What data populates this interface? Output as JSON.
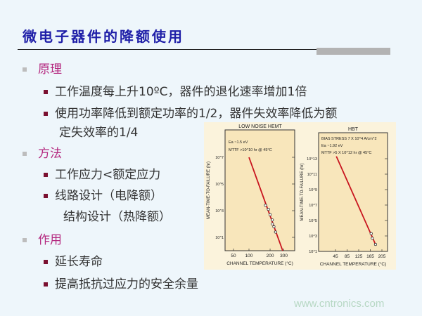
{
  "title": "微电子器件的降额使用",
  "sections": [
    {
      "heading": "原理",
      "items": [
        "工作温度每上升10ºC，器件的退化速率增加1倍",
        "使用功率降低到额定功率的1/2，器件失效率降低为额",
        "定失效率的1/4"
      ]
    },
    {
      "heading": "方法",
      "items": [
        "工作应力<额定应力",
        "线路设计（电降额）",
        "结构设计（热降额）"
      ]
    },
    {
      "heading": "作用",
      "items": [
        "延长寿命",
        "提高抵抗过应力的安全余量"
      ]
    }
  ],
  "watermark": "www.cntronics.com",
  "chart_data": [
    {
      "type": "line",
      "title": "LOW NOISE HEMT",
      "annotations": [
        "Ea ~1.5 eV",
        "MTTF >10^10 hr @ 45°C"
      ],
      "xlabel": "CHANNEL TEMPERATURE (°C)",
      "ylabel": "MEAN-TIME-TO-FAILURE (hr)",
      "x_scale": "reciprocal",
      "y_scale": "log",
      "x_ticks": [
        "50",
        "100",
        "200",
        "300"
      ],
      "x_tick_values": [
        50,
        100,
        200,
        300
      ],
      "y_ticks": [
        "10^7",
        "10^5",
        "10^3",
        "10^1"
      ],
      "y_tick_values": [
        10000000.0,
        100000.0,
        1000.0,
        10.0
      ],
      "line": [
        {
          "x": 100,
          "y": 10000000.0
        },
        {
          "x": 290,
          "y": 1
        }
      ],
      "points": [
        {
          "x": 174,
          "y": 2500
        },
        {
          "x": 190,
          "y": 1260
        },
        {
          "x": 200,
          "y": 500
        },
        {
          "x": 214,
          "y": 200
        },
        {
          "x": 214,
          "y": 100
        },
        {
          "x": 224,
          "y": 63
        },
        {
          "x": 235,
          "y": 25
        }
      ],
      "line_color": "#c8141e"
    },
    {
      "type": "line",
      "title": "HBT",
      "annotations": [
        "BIAS STRESS 7 X 10^4 A/cm^2",
        "Ea ~1.92 eV",
        "MTTF >5 X 10^12 hr @ 45°C"
      ],
      "xlabel": "CHANNEL TEMPERATURE (°C)",
      "ylabel": "MEAN-TIME-TO-FAILURE (hr)",
      "y_scale": "log",
      "x_ticks": [
        "45",
        "85",
        "125",
        "165",
        "205"
      ],
      "x_tick_values": [
        45,
        85,
        125,
        165,
        205
      ],
      "y_ticks": [
        "10^13",
        "10^11",
        "10^9",
        "10^7",
        "10^5",
        "10^3",
        "10^1"
      ],
      "y_tick_values": [
        10000000000000.0,
        100000000000.0,
        1000000000.0,
        10000000.0,
        100000.0,
        1000.0,
        10.0
      ],
      "line": [
        {
          "x": 48,
          "y": 20000000000000.0
        },
        {
          "x": 183,
          "y": 80
        }
      ],
      "points": [
        {
          "x": 168,
          "y": 2000
        },
        {
          "x": 172,
          "y": 500
        },
        {
          "x": 183,
          "y": 80
        }
      ],
      "line_color": "#c8141e"
    }
  ]
}
